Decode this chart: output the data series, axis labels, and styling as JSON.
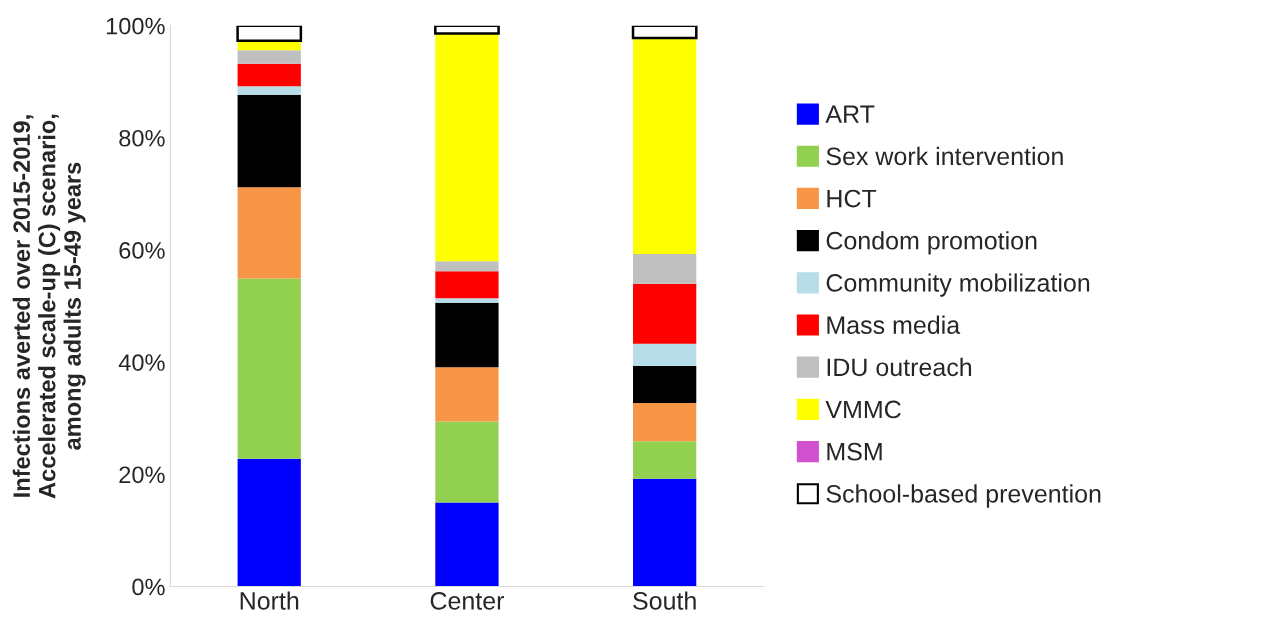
{
  "chart_data": {
    "type": "bar",
    "stacked": true,
    "ylabel": "Infections averted over 2015-2019,\nAccelerated scale-up (C) scenario,\namong adults 15-49 years",
    "categories": [
      "North",
      "Center",
      "South"
    ],
    "series": [
      {
        "name": "ART",
        "color": "#0000ff",
        "values": [
          22.8,
          15.0,
          19.2
        ]
      },
      {
        "name": "Sex work intervention",
        "color": "#92d050",
        "values": [
          32.1,
          14.4,
          6.7
        ]
      },
      {
        "name": "HCT",
        "color": "#f79646",
        "values": [
          16.3,
          9.7,
          6.8
        ]
      },
      {
        "name": "Condom promotion",
        "color": "#000000",
        "values": [
          16.5,
          11.5,
          6.6
        ]
      },
      {
        "name": "Community mobilization",
        "color": "#b7dde8",
        "values": [
          1.5,
          0.8,
          4.0
        ]
      },
      {
        "name": "Mass media",
        "color": "#ff0000",
        "values": [
          4.0,
          4.8,
          10.7
        ]
      },
      {
        "name": "IDU outreach",
        "color": "#bfbfbf",
        "values": [
          2.4,
          1.8,
          5.3
        ]
      },
      {
        "name": "VMMC",
        "color": "#ffff00",
        "values": [
          1.7,
          40.6,
          38.5
        ]
      },
      {
        "name": "MSM",
        "color": "#d050d0",
        "values": [
          0,
          0,
          0
        ]
      },
      {
        "name": "School-based prevention",
        "color": "#ffffff",
        "values": [
          2.7,
          1.4,
          2.2
        ]
      }
    ],
    "ylim": [
      0,
      100
    ],
    "yticks": [
      {
        "value": 0,
        "label": "0%"
      },
      {
        "value": 20,
        "label": "20%"
      },
      {
        "value": 40,
        "label": "40%"
      },
      {
        "value": 60,
        "label": "60%"
      },
      {
        "value": 80,
        "label": "80%"
      },
      {
        "value": 100,
        "label": "100%"
      }
    ],
    "grid": false,
    "legend": "right"
  }
}
